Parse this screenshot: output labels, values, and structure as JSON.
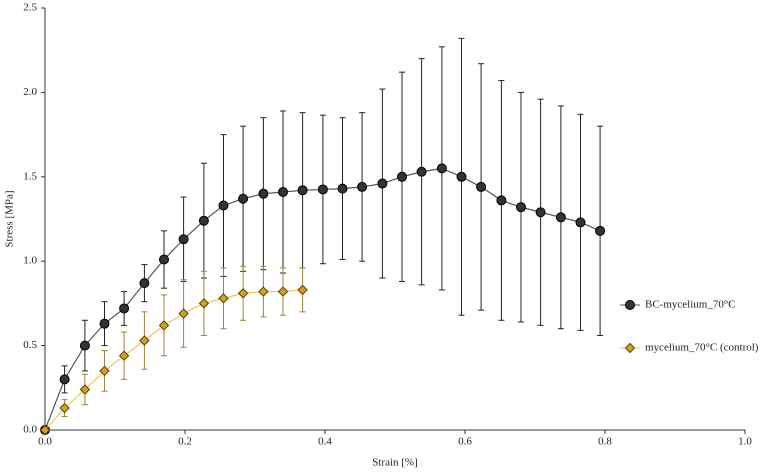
{
  "chart_data": {
    "type": "line",
    "x_label": "Strain [%]",
    "y_label": "Stress [MPa]",
    "xlim": [
      0,
      1.0
    ],
    "ylim": [
      0,
      2.5
    ],
    "xticks": [
      {
        "value": 0,
        "label": "0.0"
      },
      0.2,
      0.4,
      0.6,
      0.8,
      {
        "value": 1.0,
        "label": "1.0"
      }
    ],
    "yticks": [
      {
        "value": 0,
        "label": "0.0"
      },
      0.5,
      {
        "value": 1.0,
        "label": "1.0"
      },
      1.5,
      {
        "value": 2.0,
        "label": "2.0"
      },
      2.5
    ],
    "grid": false,
    "legend": "right",
    "series": [
      {
        "name": "BC-mycelium_70°C",
        "color": "#333333",
        "line_color": "#555555",
        "marker": "circle",
        "x": [
          0,
          0.028,
          0.057,
          0.085,
          0.113,
          0.142,
          0.17,
          0.198,
          0.227,
          0.255,
          0.283,
          0.312,
          0.34,
          0.368,
          0.397,
          0.425,
          0.453,
          0.482,
          0.51,
          0.538,
          0.567,
          0.595,
          0.623,
          0.652,
          0.68,
          0.708,
          0.737,
          0.765,
          0.793
        ],
        "values": [
          0,
          0.3,
          0.5,
          0.63,
          0.72,
          0.87,
          1.01,
          1.13,
          1.24,
          1.33,
          1.37,
          1.4,
          1.41,
          1.42,
          1.425,
          1.43,
          1.44,
          1.46,
          1.5,
          1.53,
          1.55,
          1.5,
          1.44,
          1.36,
          1.32,
          1.29,
          1.26,
          1.23,
          1.18
        ],
        "errors": [
          0,
          0.08,
          0.15,
          0.13,
          0.1,
          0.11,
          0.17,
          0.25,
          0.34,
          0.42,
          0.43,
          0.45,
          0.48,
          0.46,
          0.44,
          0.42,
          0.44,
          0.56,
          0.62,
          0.67,
          0.72,
          0.82,
          0.73,
          0.71,
          0.68,
          0.67,
          0.66,
          0.64,
          0.62
        ]
      },
      {
        "name": "mycelium_70°C (control)",
        "color": "#d4a020",
        "line_color": "#f0c850",
        "marker": "diamond",
        "x": [
          0,
          0.028,
          0.057,
          0.085,
          0.113,
          0.142,
          0.17,
          0.198,
          0.227,
          0.255,
          0.283,
          0.312,
          0.34,
          0.368
        ],
        "values": [
          0,
          0.13,
          0.24,
          0.35,
          0.44,
          0.53,
          0.62,
          0.69,
          0.75,
          0.78,
          0.81,
          0.82,
          0.82,
          0.83
        ],
        "errors": [
          0,
          0.05,
          0.09,
          0.12,
          0.14,
          0.17,
          0.18,
          0.2,
          0.19,
          0.18,
          0.16,
          0.15,
          0.14,
          0.13
        ]
      }
    ]
  }
}
